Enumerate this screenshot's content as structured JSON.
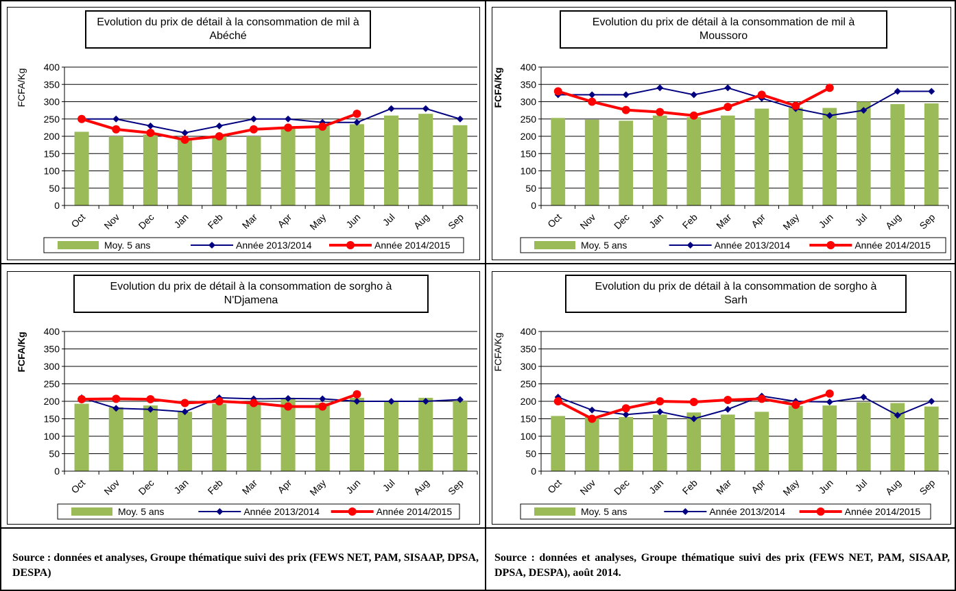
{
  "colors": {
    "bar": "#9bbb59",
    "line_2013": "#000080",
    "line_2014": "#ff0000",
    "grid": "#000000"
  },
  "months": [
    "Oct",
    "Nov",
    "Dec",
    "Jan",
    "Feb",
    "Mar",
    "Apr",
    "May",
    "Jun",
    "Jul",
    "Aug",
    "Sep"
  ],
  "legend": {
    "avg": "Moy. 5 ans",
    "y2013": "Année 2013/2014",
    "y2014": "Année 2014/2015"
  },
  "chart_data": [
    {
      "type": "bar",
      "title": "Evolution du prix de détail à la consommation de mil à Abéché",
      "title_lines": [
        "Evolution du prix de détail à la consommation de mil à",
        "Abéché"
      ],
      "ylabel": "FCFA/Kg",
      "ylabel_bold": false,
      "ylim": [
        0,
        400
      ],
      "yticks": [
        0,
        50,
        100,
        150,
        200,
        250,
        300,
        350,
        400
      ],
      "categories": [
        "Oct",
        "Nov",
        "Dec",
        "Jan",
        "Feb",
        "Mar",
        "Apr",
        "May",
        "Jun",
        "Jul",
        "Aug",
        "Sep"
      ],
      "series": [
        {
          "name": "Moy. 5 ans",
          "type": "bar",
          "values": [
            213,
            200,
            205,
            190,
            200,
            200,
            222,
            230,
            235,
            260,
            265,
            232
          ]
        },
        {
          "name": "Année 2013/2014",
          "type": "line",
          "values": [
            250,
            250,
            230,
            210,
            230,
            250,
            250,
            240,
            240,
            280,
            280,
            250
          ]
        },
        {
          "name": "Année 2014/2015",
          "type": "line",
          "values": [
            250,
            220,
            210,
            190,
            200,
            220,
            225,
            228,
            265,
            null,
            null,
            null
          ]
        }
      ],
      "grid": true,
      "legend_position": "bottom"
    },
    {
      "type": "bar",
      "title": "Evolution du prix de détail à la consommation de mil à Moussoro",
      "title_lines": [
        "Evolution du prix de détail à la consommation de mil à",
        "Moussoro"
      ],
      "ylabel": "FCFA/Kg",
      "ylabel_bold": true,
      "ylim": [
        0,
        400
      ],
      "yticks": [
        0,
        50,
        100,
        150,
        200,
        250,
        300,
        350,
        400
      ],
      "categories": [
        "Oct",
        "Nov",
        "Dec",
        "Jan",
        "Feb",
        "Mar",
        "Apr",
        "May",
        "Jun",
        "Jul",
        "Aug",
        "Sep"
      ],
      "series": [
        {
          "name": "Moy. 5 ans",
          "type": "bar",
          "values": [
            253,
            248,
            245,
            260,
            255,
            260,
            280,
            283,
            282,
            300,
            293,
            295
          ]
        },
        {
          "name": "Année 2013/2014",
          "type": "line",
          "values": [
            320,
            320,
            320,
            340,
            320,
            340,
            310,
            280,
            260,
            275,
            330,
            330
          ]
        },
        {
          "name": "Année 2014/2015",
          "type": "line",
          "values": [
            330,
            300,
            276,
            270,
            260,
            285,
            320,
            288,
            340,
            null,
            null,
            null
          ]
        }
      ],
      "grid": true,
      "legend_position": "bottom"
    },
    {
      "type": "bar",
      "title": "Evolution du prix de détail à la consommation de sorgho à N'Djamena",
      "title_lines": [
        "Evolution du prix de détail à la consommation de sorgho à",
        "N'Djamena"
      ],
      "ylabel": "FCFA/Kg",
      "ylabel_bold": true,
      "ylim": [
        0,
        400
      ],
      "yticks": [
        0,
        50,
        100,
        150,
        200,
        250,
        300,
        350,
        400
      ],
      "categories": [
        "Oct",
        "Nov",
        "Dec",
        "Jan",
        "Feb",
        "Mar",
        "Apr",
        "May",
        "Jun",
        "Jul",
        "Aug",
        "Sep"
      ],
      "series": [
        {
          "name": "Moy. 5 ans",
          "type": "bar",
          "values": [
            193,
            183,
            188,
            170,
            193,
            197,
            210,
            195,
            210,
            198,
            210,
            200
          ]
        },
        {
          "name": "Année 2013/2014",
          "type": "line",
          "values": [
            210,
            180,
            177,
            170,
            210,
            207,
            208,
            207,
            200,
            200,
            200,
            205
          ]
        },
        {
          "name": "Année 2014/2015",
          "type": "line",
          "values": [
            206,
            207,
            206,
            195,
            200,
            195,
            185,
            185,
            220,
            null,
            null,
            null
          ]
        }
      ],
      "grid": true,
      "legend_position": "bottom"
    },
    {
      "type": "bar",
      "title": "Evolution du prix de détail à la consommation de sorgho à Sarh",
      "title_lines": [
        "Evolution du prix de détail à la consommation de sorgho à",
        "Sarh"
      ],
      "ylabel": "FCFA/Kg",
      "ylabel_bold": false,
      "ylim": [
        0,
        400
      ],
      "yticks": [
        0,
        50,
        100,
        150,
        200,
        250,
        300,
        350,
        400
      ],
      "categories": [
        "Oct",
        "Nov",
        "Dec",
        "Jan",
        "Feb",
        "Mar",
        "Apr",
        "May",
        "Jun",
        "Jul",
        "Aug",
        "Sep"
      ],
      "series": [
        {
          "name": "Moy. 5 ans",
          "type": "bar",
          "values": [
            158,
            155,
            155,
            162,
            168,
            162,
            170,
            187,
            188,
            197,
            195,
            185
          ]
        },
        {
          "name": "Année 2013/2014",
          "type": "line",
          "values": [
            212,
            175,
            162,
            170,
            150,
            177,
            215,
            200,
            198,
            212,
            160,
            200
          ]
        },
        {
          "name": "Année 2014/2015",
          "type": "line",
          "values": [
            200,
            150,
            180,
            200,
            198,
            204,
            207,
            190,
            222,
            null,
            null,
            null
          ]
        }
      ],
      "grid": true,
      "legend_position": "bottom"
    }
  ],
  "sources": [
    "Source : données et analyses, Groupe thématique suivi des prix (FEWS NET, PAM, SISAAP, DPSA, DESPA)",
    "Source : données et analyses, Groupe thématique suivi des prix (FEWS NET, PAM, SISAAP, DPSA, DESPA), août 2014."
  ]
}
